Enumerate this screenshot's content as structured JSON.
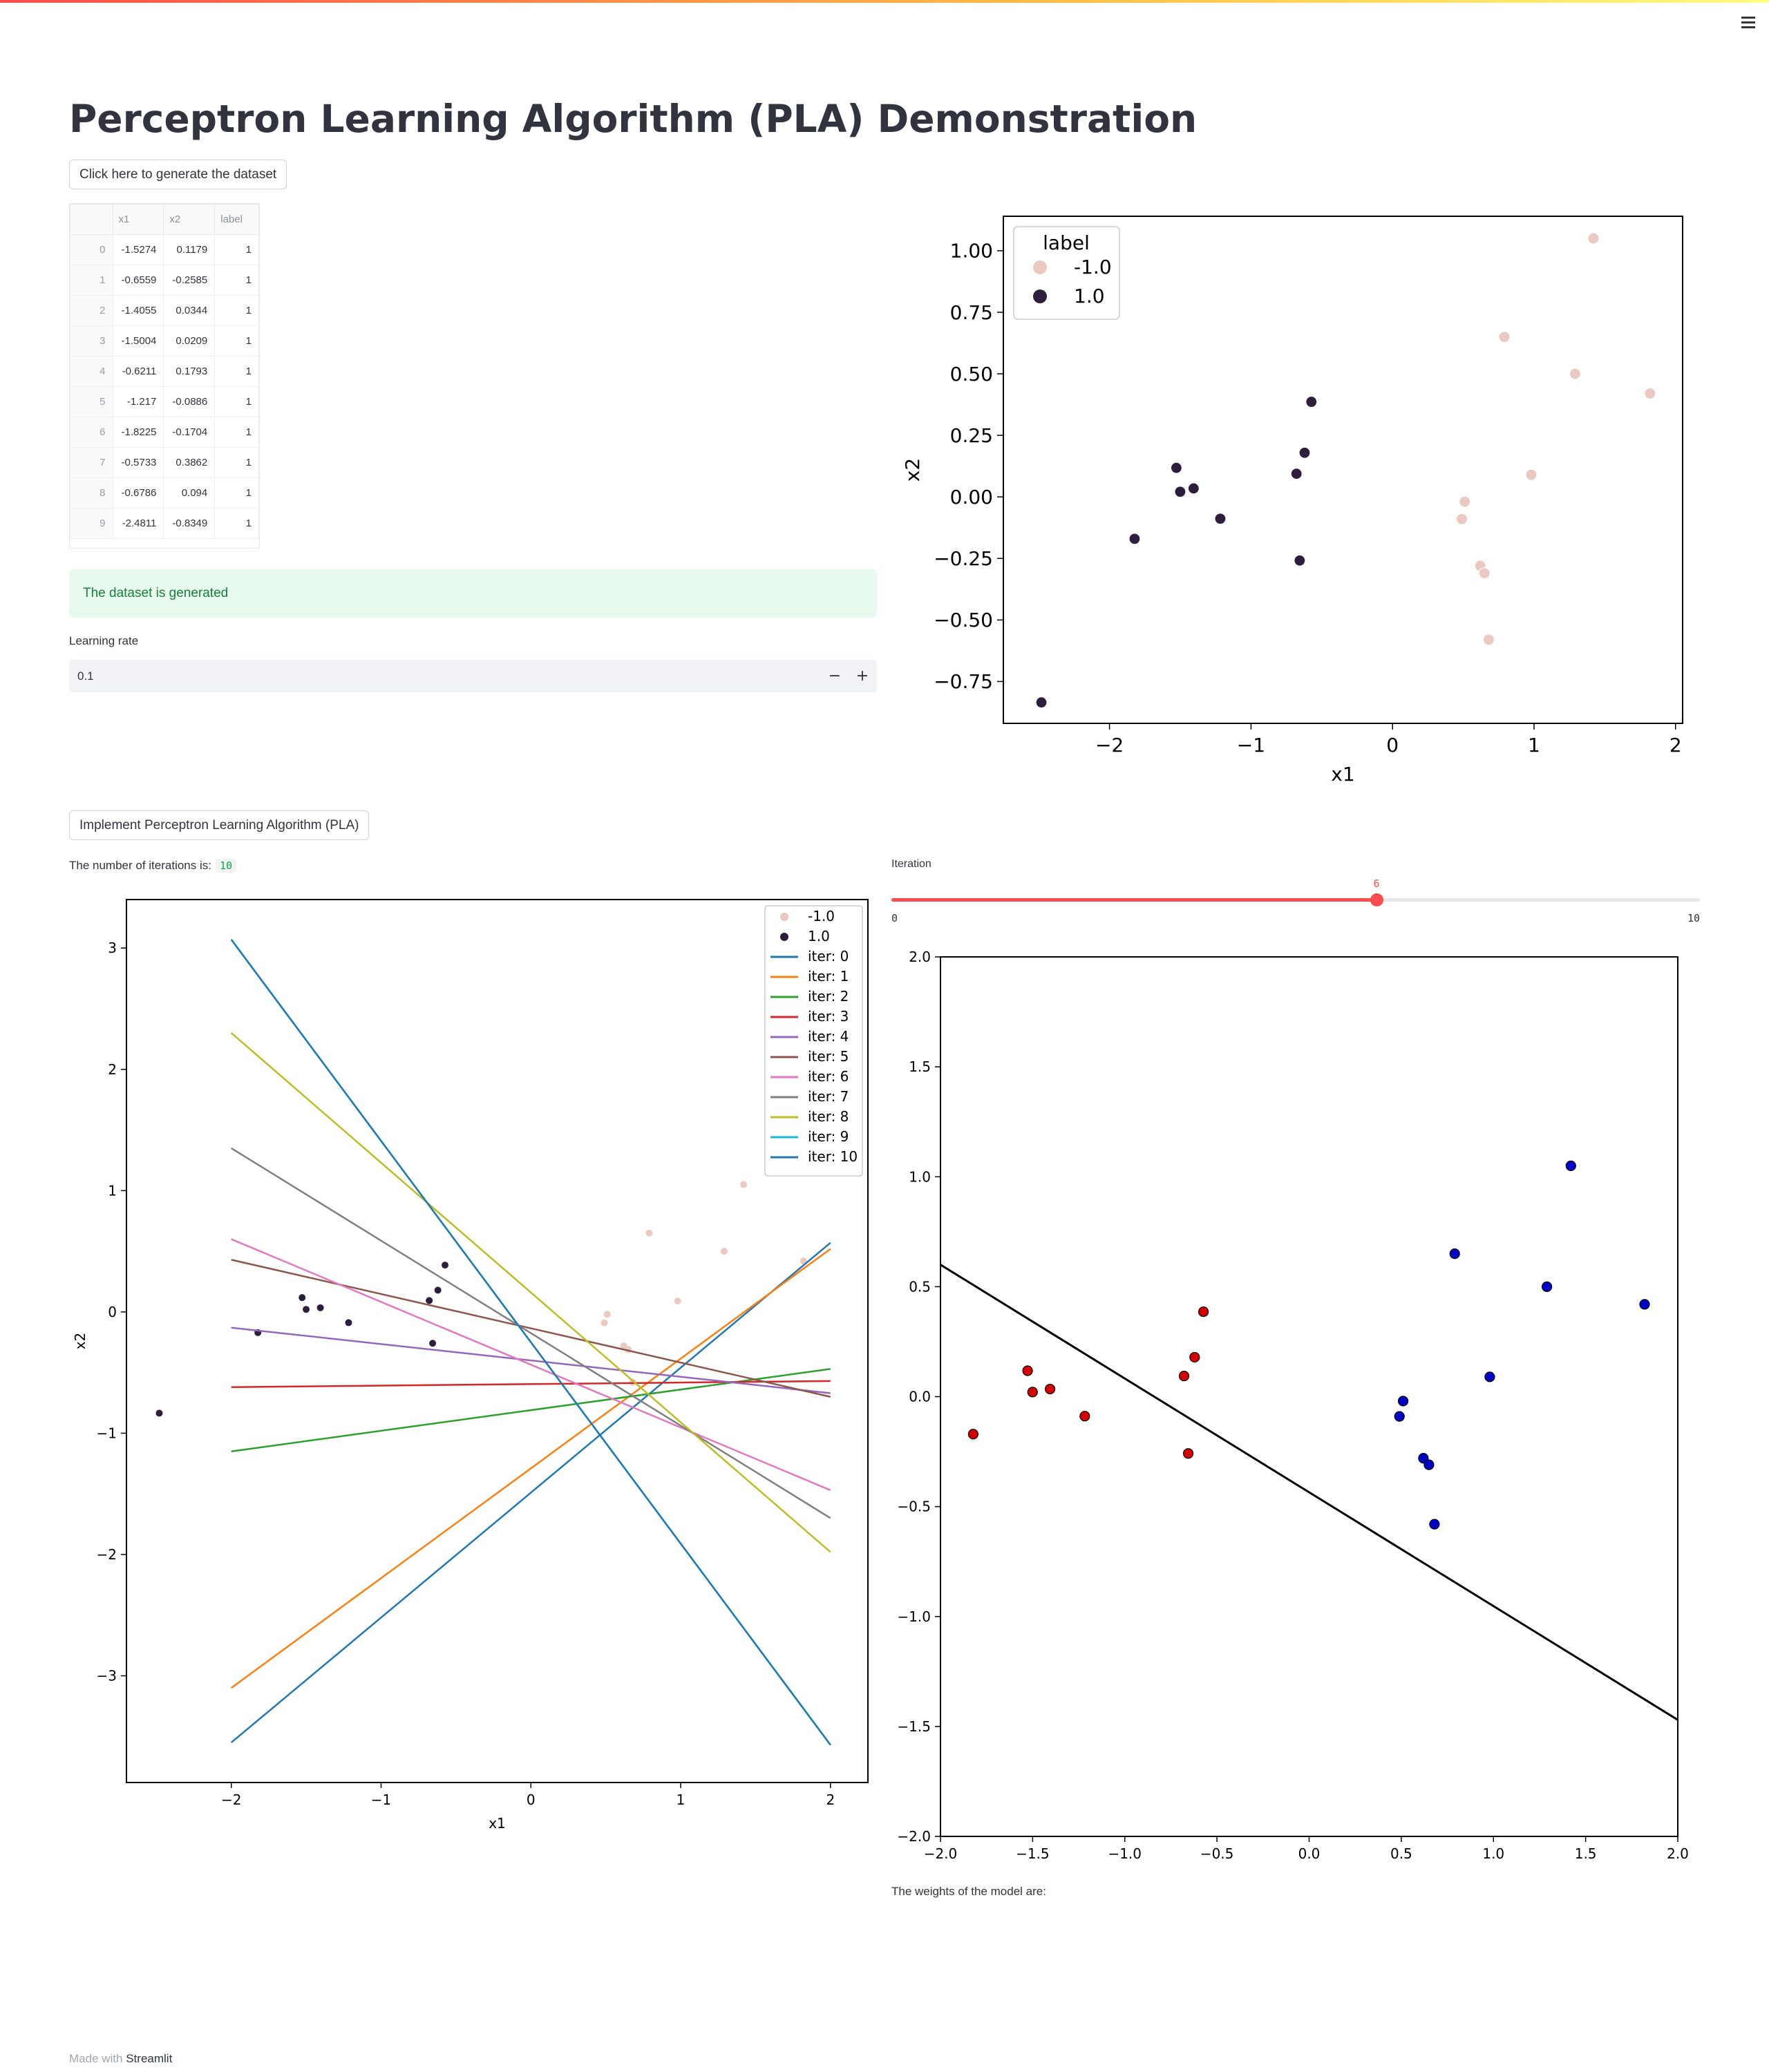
{
  "app": {
    "title": "Perceptron Learning Algorithm (PLA) Demonstration",
    "generate_button": "Click here to generate the dataset",
    "implement_button": "Implement Perceptron Learning Algorithm (PLA)",
    "success_message": "The dataset is generated",
    "learning_rate_label": "Learning rate",
    "learning_rate_value": "0.1",
    "learning_rate_minus": "−",
    "learning_rate_plus": "+",
    "iterations_label": "The number of iterations is:",
    "iterations_value": "10",
    "slider_label": "Iteration",
    "slider_value": 6,
    "slider_min": "0",
    "slider_max": "10",
    "weights_label": "The weights of the model are:",
    "footer_prefix": "Made with",
    "footer_brand": "Streamlit"
  },
  "table": {
    "columns": [
      "",
      "x1",
      "x2",
      "label"
    ],
    "rows": [
      [
        "0",
        "-1.5274",
        "0.1179",
        "1"
      ],
      [
        "1",
        "-0.6559",
        "-0.2585",
        "1"
      ],
      [
        "2",
        "-1.4055",
        "0.0344",
        "1"
      ],
      [
        "3",
        "-1.5004",
        "0.0209",
        "1"
      ],
      [
        "4",
        "-0.6211",
        "0.1793",
        "1"
      ],
      [
        "5",
        "-1.217",
        "-0.0886",
        "1"
      ],
      [
        "6",
        "-1.8225",
        "-0.1704",
        "1"
      ],
      [
        "7",
        "-0.5733",
        "0.3862",
        "1"
      ],
      [
        "8",
        "-0.6786",
        "0.094",
        "1"
      ],
      [
        "9",
        "-2.4811",
        "-0.8349",
        "1"
      ]
    ]
  },
  "colors": {
    "accent": "#ff4b4b",
    "neg_point": "#ecc8c3",
    "pos_point": "#2d1e3e",
    "success_bg": "#e8f9ee",
    "success_text": "#17803d"
  },
  "chart_data": [
    {
      "type": "scatter",
      "title": "",
      "xlabel": "x1",
      "ylabel": "x2",
      "xlim": [
        -2.75,
        2.05
      ],
      "ylim": [
        -0.92,
        1.14
      ],
      "xticks": [
        -2,
        -1,
        0,
        1,
        2
      ],
      "yticks": [
        -0.75,
        -0.5,
        -0.25,
        0.0,
        0.25,
        0.5,
        0.75,
        1.0
      ],
      "xtick_labels": [
        "−2",
        "−1",
        "0",
        "1",
        "2"
      ],
      "ytick_labels": [
        "−0.75",
        "−0.50",
        "−0.25",
        "0.00",
        "0.25",
        "0.50",
        "0.75",
        "1.00"
      ],
      "legend": {
        "title": "label",
        "position": "top-left",
        "entries": [
          "-1.0",
          "1.0"
        ]
      },
      "series": [
        {
          "name": "-1.0",
          "color": "#ecc8c3",
          "x": [
            1.42,
            0.79,
            1.29,
            1.82,
            0.98,
            0.51,
            0.49,
            0.62,
            0.65,
            0.68
          ],
          "y": [
            1.05,
            0.65,
            0.5,
            0.42,
            0.09,
            -0.02,
            -0.09,
            -0.28,
            -0.31,
            -0.58
          ]
        },
        {
          "name": "1.0",
          "color": "#2d1e3e",
          "x": [
            -1.5274,
            -0.6559,
            -1.4055,
            -1.5004,
            -0.6211,
            -1.217,
            -1.8225,
            -0.5733,
            -0.6786,
            -2.4811
          ],
          "y": [
            0.1179,
            -0.2585,
            0.0344,
            0.0209,
            0.1793,
            -0.0886,
            -0.1704,
            0.3862,
            0.094,
            -0.8349
          ]
        }
      ]
    },
    {
      "type": "line",
      "title": "",
      "xlabel": "x1",
      "ylabel": "x2",
      "xlim": [
        -2.7,
        2.25
      ],
      "ylim": [
        -3.88,
        3.4
      ],
      "xticks": [
        -2,
        -1,
        0,
        1,
        2
      ],
      "yticks": [
        -3,
        -2,
        -1,
        0,
        1,
        2,
        3
      ],
      "xtick_labels": [
        "−2",
        "−1",
        "0",
        "1",
        "2"
      ],
      "ytick_labels": [
        "−3",
        "−2",
        "−1",
        "0",
        "1",
        "2",
        "3"
      ],
      "legend": {
        "position": "top-right"
      },
      "points": [
        {
          "name": "-1.0",
          "color": "#ecc8c3",
          "x": [
            1.42,
            0.79,
            1.29,
            1.82,
            0.98,
            0.51,
            0.49,
            0.62,
            0.65,
            0.68
          ],
          "y": [
            1.05,
            0.65,
            0.5,
            0.42,
            0.09,
            -0.02,
            -0.09,
            -0.28,
            -0.31,
            -0.58
          ]
        },
        {
          "name": "1.0",
          "color": "#2d1e3e",
          "x": [
            -1.5274,
            -0.6559,
            -1.4055,
            -1.5004,
            -0.6211,
            -1.217,
            -1.8225,
            -0.5733,
            -0.6786,
            -2.4811
          ],
          "y": [
            0.1179,
            -0.2585,
            0.0344,
            0.0209,
            0.1793,
            -0.0886,
            -0.1704,
            0.3862,
            0.094,
            -0.8349
          ]
        }
      ],
      "series": [
        {
          "name": "iter: 0",
          "color": "#1f77b4",
          "x": [
            -2,
            2
          ],
          "y": [
            -3.55,
            0.57
          ]
        },
        {
          "name": "iter: 1",
          "color": "#ff7f0e",
          "x": [
            -2,
            2
          ],
          "y": [
            -3.1,
            0.52
          ]
        },
        {
          "name": "iter: 2",
          "color": "#2ca02c",
          "x": [
            -2,
            2
          ],
          "y": [
            -1.15,
            -0.47
          ]
        },
        {
          "name": "iter: 3",
          "color": "#d62728",
          "x": [
            -2,
            2
          ],
          "y": [
            -0.62,
            -0.57
          ]
        },
        {
          "name": "iter: 4",
          "color": "#9467bd",
          "x": [
            -2,
            2
          ],
          "y": [
            -0.13,
            -0.67
          ]
        },
        {
          "name": "iter: 5",
          "color": "#8c564b",
          "x": [
            -2,
            2
          ],
          "y": [
            0.43,
            -0.7
          ]
        },
        {
          "name": "iter: 6",
          "color": "#e377c2",
          "x": [
            -2,
            2
          ],
          "y": [
            0.6,
            -1.47
          ]
        },
        {
          "name": "iter: 7",
          "color": "#7f7f7f",
          "x": [
            -2,
            2
          ],
          "y": [
            1.35,
            -1.7
          ]
        },
        {
          "name": "iter: 8",
          "color": "#bcbd22",
          "x": [
            -2,
            2
          ],
          "y": [
            2.3,
            -1.98
          ]
        },
        {
          "name": "iter: 9",
          "color": "#17becf",
          "x": [
            -2,
            2
          ],
          "y": [
            3.07,
            -3.57
          ]
        },
        {
          "name": "iter: 10",
          "color": "#1f77b4",
          "x": [
            -2,
            2
          ],
          "y": [
            3.07,
            -3.57
          ]
        }
      ]
    },
    {
      "type": "scatter",
      "title": "",
      "xlim": [
        -2.0,
        2.0
      ],
      "ylim": [
        -2.0,
        2.0
      ],
      "xticks": [
        -2.0,
        -1.5,
        -1.0,
        -0.5,
        0.0,
        0.5,
        1.0,
        1.5,
        2.0
      ],
      "yticks": [
        -2.0,
        -1.5,
        -1.0,
        -0.5,
        0.0,
        0.5,
        1.0,
        1.5,
        2.0
      ],
      "xtick_labels": [
        "−2.0",
        "−1.5",
        "−1.0",
        "−0.5",
        "0.0",
        "0.5",
        "1.0",
        "1.5",
        "2.0"
      ],
      "ytick_labels": [
        "−2.0",
        "−1.5",
        "−1.0",
        "−0.5",
        "0.0",
        "0.5",
        "1.0",
        "1.5",
        "2.0"
      ],
      "series": [
        {
          "name": "",
          "color": "#d40000",
          "x": [
            -1.5274,
            -0.6559,
            -1.4055,
            -1.5004,
            -0.6211,
            -1.217,
            -1.8225,
            -0.5733,
            -0.6786
          ],
          "y": [
            0.1179,
            -0.2585,
            0.0344,
            0.0209,
            0.1793,
            -0.0886,
            -0.1704,
            0.3862,
            0.094
          ]
        },
        {
          "name": "",
          "color": "#0000c8",
          "x": [
            1.42,
            0.79,
            1.29,
            1.82,
            0.98,
            0.51,
            0.49,
            0.62,
            0.65,
            0.68
          ],
          "y": [
            1.05,
            0.65,
            0.5,
            0.42,
            0.09,
            -0.02,
            -0.09,
            -0.28,
            -0.31,
            -0.58
          ]
        }
      ],
      "decision_line": {
        "color": "#000000",
        "x": [
          -2.0,
          2.0
        ],
        "y": [
          0.6,
          -1.47
        ]
      }
    }
  ]
}
